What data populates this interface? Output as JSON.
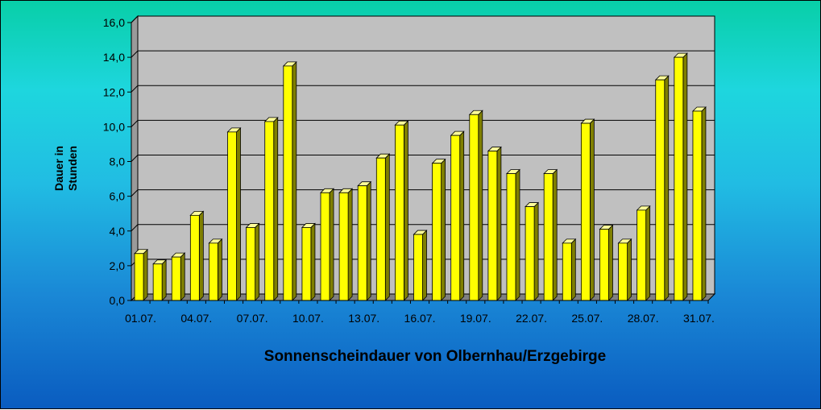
{
  "chart_data": {
    "type": "bar",
    "title": "Sonnenscheindauer von Olbernhau/Erzgebirge",
    "ylabel": [
      "Dauer in",
      "Stunden"
    ],
    "xlabel": "",
    "ylim": [
      0,
      16
    ],
    "yticks": [
      "0,0",
      "2,0",
      "4,0",
      "6,0",
      "8,0",
      "10,0",
      "12,0",
      "14,0",
      "16,0"
    ],
    "categories": [
      "01.07.",
      "02.07.",
      "03.07.",
      "04.07.",
      "05.07.",
      "06.07.",
      "07.07.",
      "08.07.",
      "09.07.",
      "10.07.",
      "11.07.",
      "12.07.",
      "13.07.",
      "14.07.",
      "15.07.",
      "16.07.",
      "17.07.",
      "18.07.",
      "19.07.",
      "20.07.",
      "21.07.",
      "22.07.",
      "23.07.",
      "24.07.",
      "25.07.",
      "26.07.",
      "27.07.",
      "28.07.",
      "29.07.",
      "30.07.",
      "31.07."
    ],
    "xtick_labels_shown": [
      "01.07.",
      "04.07.",
      "07.07.",
      "10.07.",
      "13.07.",
      "16.07.",
      "19.07.",
      "22.07.",
      "25.07.",
      "28.07.",
      "31.07."
    ],
    "values": [
      2.7,
      2.1,
      2.5,
      4.9,
      3.3,
      9.7,
      4.2,
      10.3,
      13.5,
      4.2,
      6.2,
      6.2,
      6.6,
      8.2,
      10.1,
      3.8,
      7.9,
      9.5,
      10.7,
      8.6,
      7.3,
      5.4,
      7.3,
      3.3,
      10.2,
      4.1,
      3.3,
      5.2,
      12.7,
      14.0,
      10.9
    ],
    "grid": true,
    "colors": {
      "bar_front": "#ffff00",
      "bar_side": "#7f7f00",
      "bar_top": "#ffff99",
      "plot_wall": "#c0c0c0",
      "plot_floor": "#808080",
      "gridline": "#000000"
    }
  }
}
